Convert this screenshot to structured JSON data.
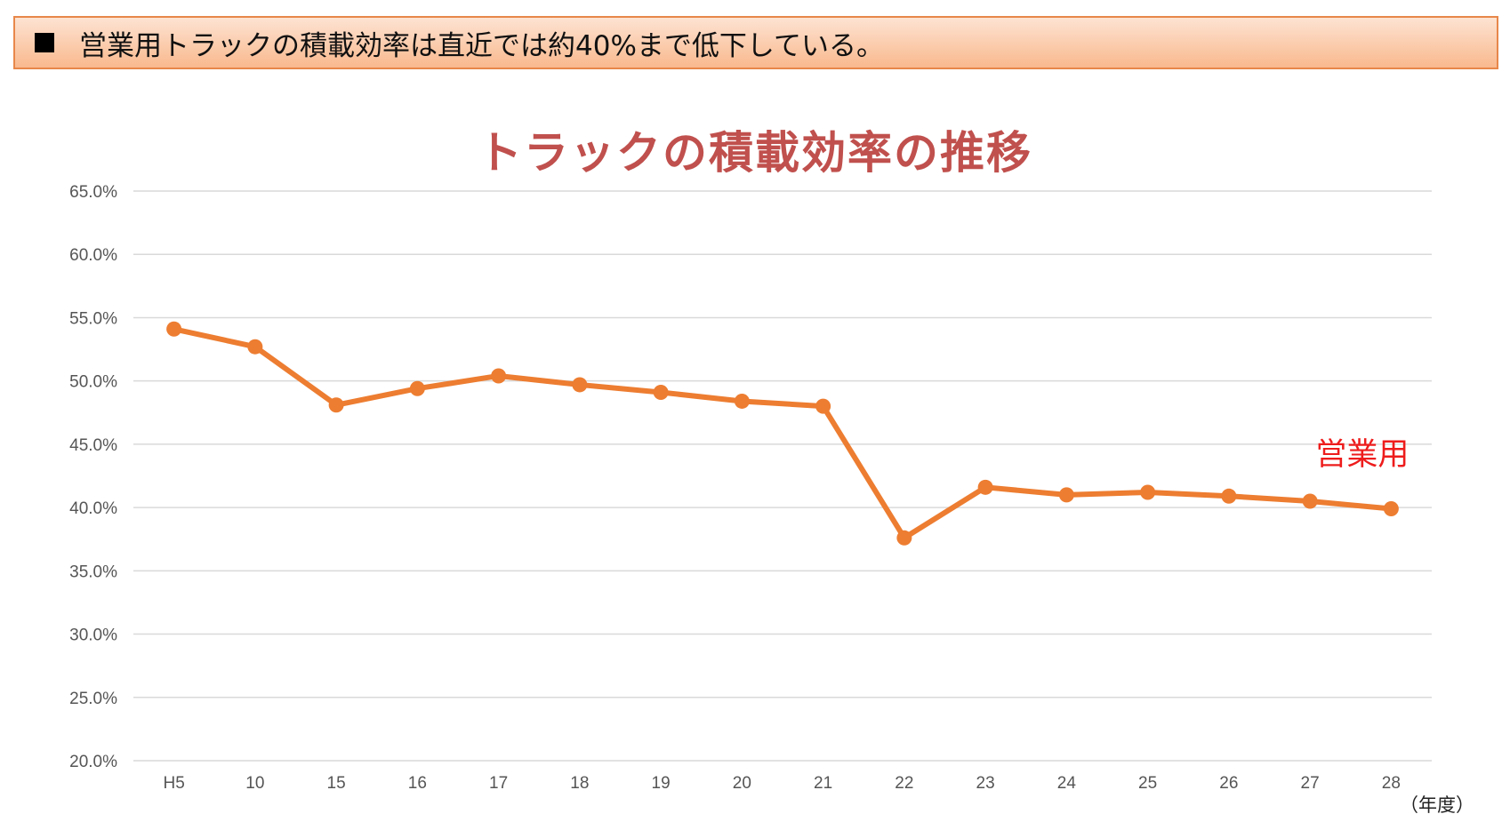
{
  "banner": {
    "bullet": "■",
    "text": "営業用トラックの積載効率は直近では約40%まで低下している。"
  },
  "chart_data": {
    "type": "line",
    "title": "トラックの積載効率の推移",
    "x_unit_label": "（年度）",
    "categories": [
      "H5",
      "10",
      "15",
      "16",
      "17",
      "18",
      "19",
      "20",
      "21",
      "22",
      "23",
      "24",
      "25",
      "26",
      "27",
      "28"
    ],
    "series": [
      {
        "name": "営業用",
        "color": "#ed7d31",
        "values": [
          54.1,
          52.7,
          48.1,
          49.4,
          50.4,
          49.7,
          49.1,
          48.4,
          48.0,
          37.6,
          41.6,
          41.0,
          41.2,
          40.9,
          40.5,
          39.9
        ]
      }
    ],
    "ylim": [
      20,
      65
    ],
    "y_ticks": [
      "20.0%",
      "25.0%",
      "30.0%",
      "35.0%",
      "40.0%",
      "45.0%",
      "50.0%",
      "55.0%",
      "60.0%",
      "65.0%"
    ],
    "y_tick_values": [
      20,
      25,
      30,
      35,
      40,
      45,
      50,
      55,
      60,
      65
    ],
    "grid": true,
    "legend_placement": "right, inline label near last point",
    "label_color": "#ee1c1c",
    "title_color": "#c0504d"
  }
}
